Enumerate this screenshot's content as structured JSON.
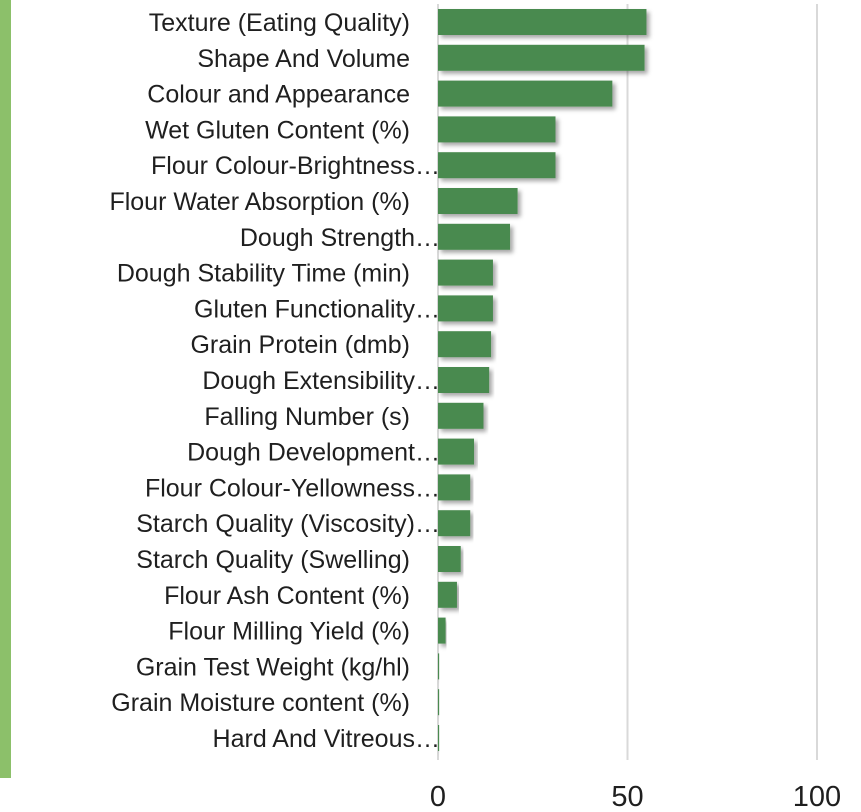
{
  "chart_data": {
    "type": "bar",
    "orientation": "horizontal",
    "categories": [
      "Texture (Eating Quality)",
      "Shape And Volume",
      "Colour and Appearance",
      "Wet Gluten Content (%)",
      "Flour Colour-Brightness…",
      "Flour Water Absorption (%)",
      "Dough Strength…",
      "Dough Stability Time (min)",
      "Gluten Functionality…",
      "Grain Protein (dmb)",
      "Dough Extensibility…",
      "Falling Number (s)",
      "Dough Development…",
      "Flour Colour-Yellowness…",
      "Starch Quality (Viscosity)…",
      "Starch Quality (Swelling)",
      "Flour Ash Content (%)",
      "Flour Milling Yield (%)",
      "Grain Test Weight (kg/hl)",
      "Grain Moisture content (%)",
      "Hard And Vitreous…"
    ],
    "values": [
      55,
      54.5,
      46,
      31,
      31,
      21,
      19,
      14.5,
      14.5,
      14,
      13.5,
      12,
      9.5,
      8.5,
      8.5,
      6,
      5,
      2,
      0.3,
      0.3,
      0.3
    ],
    "xticks": [
      "0",
      "50",
      "100"
    ],
    "xlim": [
      0,
      100
    ],
    "grid": true,
    "bar_color": "#4a8a4f",
    "grid_color": "#d9d9d9",
    "accent_strip_color": "#8cc06a"
  }
}
